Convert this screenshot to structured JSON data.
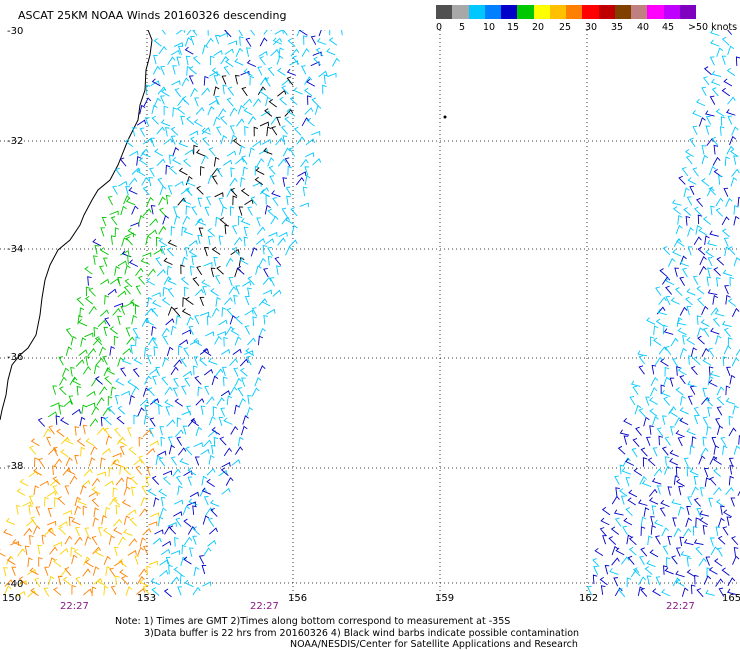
{
  "title": "ASCAT 25KM NOAA Winds 20160326 descending",
  "colorbar": {
    "swatches": [
      "#505050",
      "#a8a8a8",
      "#00c8ff",
      "#0080ff",
      "#0000c8",
      "#00c800",
      "#ffff00",
      "#ffc000",
      "#ff8000",
      "#ff0000",
      "#c00000",
      "#804000",
      "#c08080",
      "#ff00ff",
      "#c000ff",
      "#8000c0"
    ],
    "labels": [
      "0",
      "5",
      "10",
      "15",
      "20",
      "25",
      "30",
      "35",
      "40",
      "45",
      ">50 knots"
    ]
  },
  "lat_labels": [
    "-30",
    "-32",
    "-34",
    "-36",
    "-38",
    "-40"
  ],
  "lon_labels": [
    "150",
    "153",
    "156",
    "159",
    "162",
    "165"
  ],
  "time_labels": [
    "22:27",
    "22:27",
    "22:27"
  ],
  "notes": {
    "line1": "Note: 1) Times are GMT 2)Times along bottom correspond to measurement at -35S",
    "line2": "3)Data buffer is 22 hrs from 20160326 4) Black wind barbs indicate possible contamination",
    "line3": "NOAA/NESDIS/Center for Satellite Applications and Research"
  },
  "map": {
    "lat_range": [
      -40,
      -30
    ],
    "lon_range": [
      150,
      165
    ],
    "wind_colors": {
      "light": "#00c8ff",
      "medium": "#0000c8",
      "green": "#00c800",
      "yellow": "#ffd000",
      "orange": "#ff8000",
      "contaminated": "#000000"
    }
  }
}
